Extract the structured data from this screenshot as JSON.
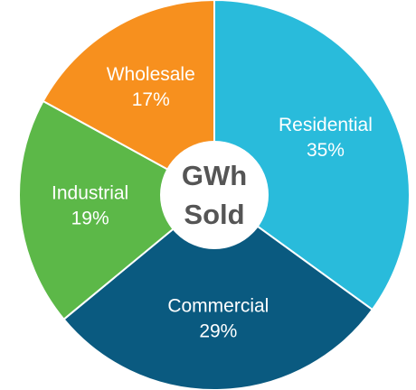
{
  "chart_data": {
    "type": "donut",
    "center_label": [
      "GWh",
      "Sold"
    ],
    "categories": [
      "Residential",
      "Commercial",
      "Industrial",
      "Wholesale"
    ],
    "values": [
      35,
      29,
      19,
      17
    ],
    "value_labels": [
      "35%",
      "29%",
      "19%",
      "17%"
    ],
    "colors": [
      "#29bbdb",
      "#0a5a80",
      "#5cb848",
      "#f7901e"
    ]
  }
}
